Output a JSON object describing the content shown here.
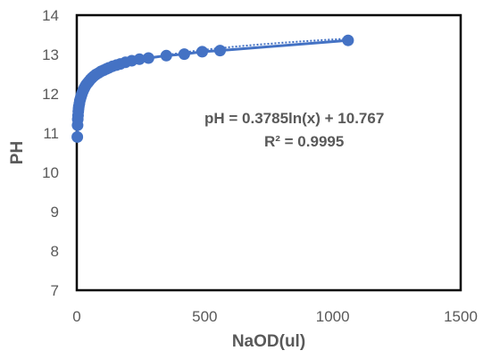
{
  "chart_data": {
    "type": "scatter",
    "title": "",
    "xlabel": "NaOD(ul)",
    "ylabel": "PH",
    "xlim": [
      0,
      1500
    ],
    "ylim": [
      7,
      14
    ],
    "x_ticks": [
      "0",
      "500",
      "1000",
      "1500"
    ],
    "y_ticks": [
      "7",
      "8",
      "9",
      "10",
      "11",
      "12",
      "13",
      "14"
    ],
    "grid": false,
    "series": [
      {
        "color": "#4472c4",
        "marker": "circle",
        "x": [
          2,
          3,
          4,
          5,
          6,
          7,
          8,
          10,
          12,
          14,
          16,
          18,
          20,
          23,
          26,
          30,
          34,
          38,
          43,
          48,
          54,
          60,
          67,
          75,
          85,
          95,
          105,
          115,
          125,
          140,
          155,
          170,
          190,
          215,
          245,
          280,
          350,
          420,
          490,
          560,
          1060
        ],
        "y": [
          10.9,
          11.2,
          11.35,
          11.45,
          11.55,
          11.62,
          11.68,
          11.75,
          11.82,
          11.87,
          11.92,
          11.96,
          12.0,
          12.05,
          12.1,
          12.15,
          12.2,
          12.24,
          12.28,
          12.32,
          12.37,
          12.41,
          12.45,
          12.49,
          12.53,
          12.57,
          12.6,
          12.63,
          12.66,
          12.7,
          12.73,
          12.76,
          12.8,
          12.84,
          12.88,
          12.91,
          12.97,
          13.01,
          13.07,
          13.1,
          13.36
        ]
      }
    ],
    "trendline": {
      "type": "logarithmic",
      "a": 0.3785,
      "b": 10.767,
      "color": "#4472c4",
      "style": "dotted"
    },
    "annotations": {
      "equation": "pH = 0.3785ln(x) + 10.767",
      "r_squared": "R² = 0.9995"
    },
    "colors": {
      "series": "#4472c4",
      "text": "#595959",
      "frame": "#000000"
    }
  }
}
